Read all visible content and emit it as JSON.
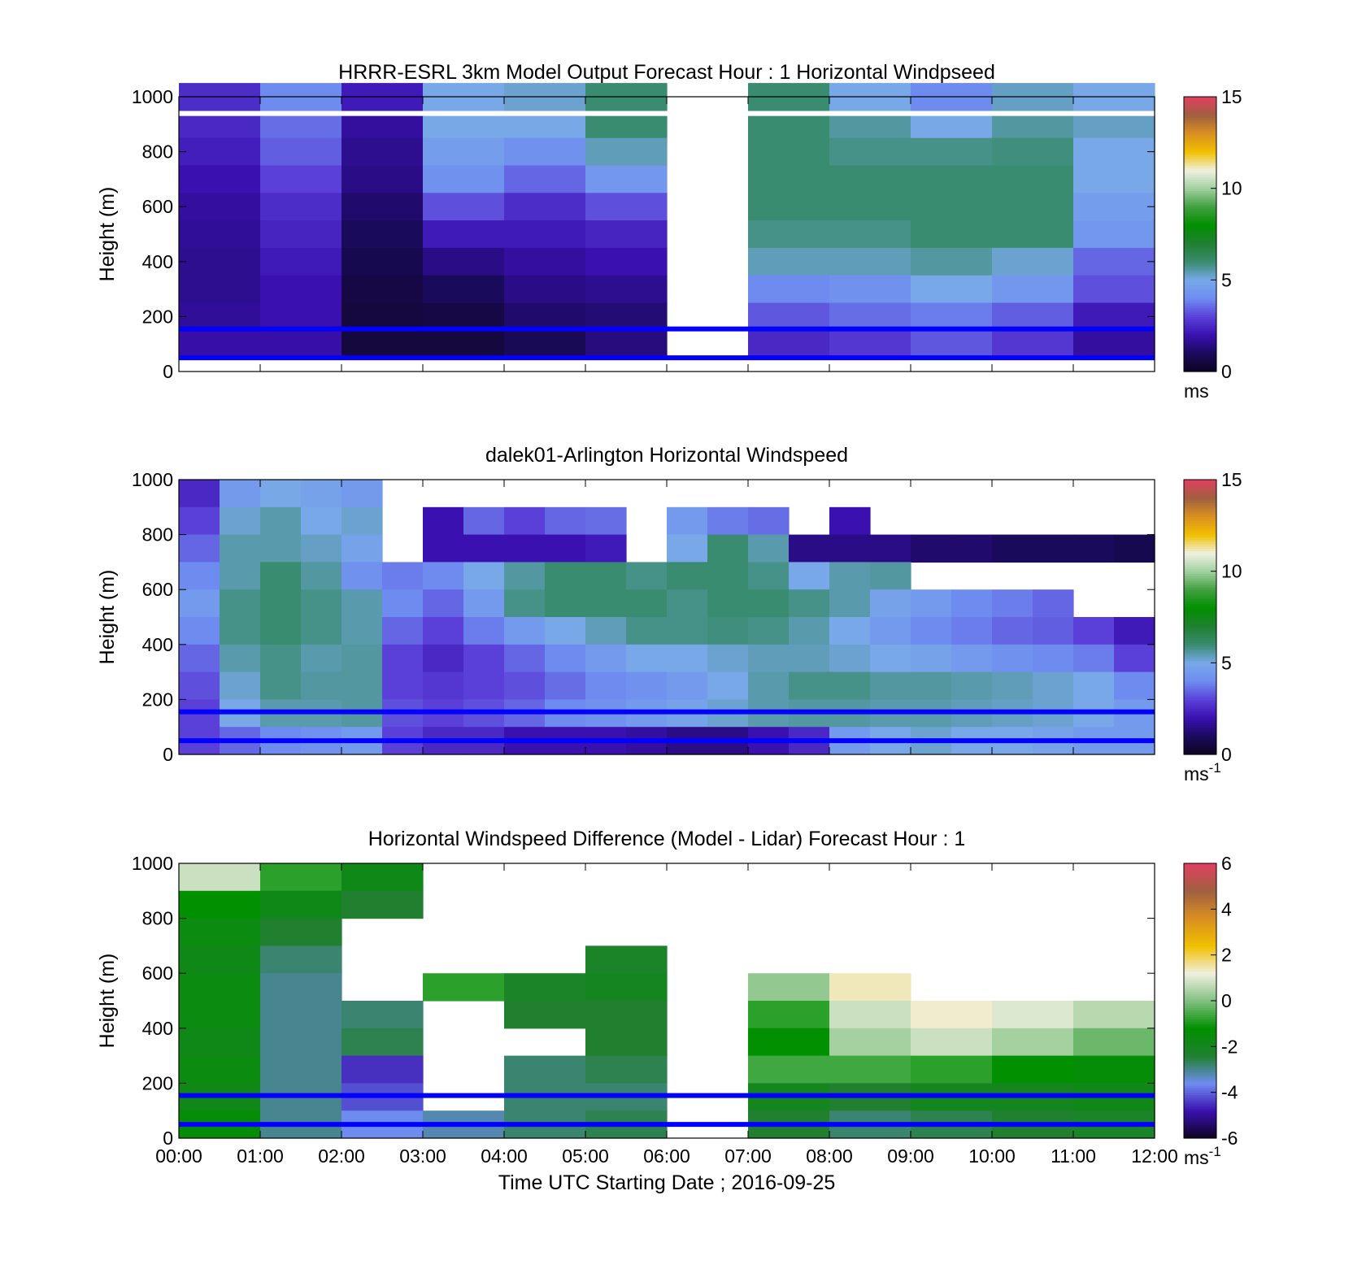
{
  "figure": {
    "xlabel": "Time UTC  Starting Date ; 2016-09-25",
    "x_ticks": [
      "00:00",
      "01:00",
      "02:00",
      "03:00",
      "04:00",
      "05:00",
      "06:00",
      "07:00",
      "08:00",
      "09:00",
      "10:00",
      "11:00",
      "12:00"
    ]
  },
  "colors": {
    "overlay_lines": "#0000ff",
    "speed_scale": [
      "#0d0520",
      "#1a0a5c",
      "#3a10b0",
      "#5a40d8",
      "#6e8cf0",
      "#78a8e8",
      "#3a8c70",
      "#208030",
      "#009000",
      "#40a040",
      "#a0d0a0",
      "#f0f0e0",
      "#f0c000",
      "#d89020",
      "#a06040",
      "#e04060"
    ],
    "diff_scale": [
      "#0d0520",
      "#3a10b0",
      "#6e8cf0",
      "#208030",
      "#009000",
      "#80c080",
      "#f0f0e0",
      "#f0c000",
      "#d89020",
      "#a06040",
      "#e04060"
    ]
  },
  "chart_data": [
    {
      "type": "heatmap",
      "title": "HRRR-ESRL 3km Model Output   Forecast Hour : 1 Horizontal Windpseed",
      "ylabel": "Height (m)",
      "xlim": [
        "00:00",
        "12:00"
      ],
      "ylim": [
        0,
        1000
      ],
      "y_ticks": [
        "0",
        "200",
        "400",
        "600",
        "800",
        "1000"
      ],
      "colorbar": {
        "ticks": [
          "0",
          "5",
          "10",
          "15"
        ],
        "range": [
          0,
          15
        ],
        "unit": "ms"
      },
      "overlay_lines_height_m": [
        50,
        155
      ],
      "missing_columns": [
        "06:00-07:00"
      ],
      "heights_m": [
        1000,
        880,
        800,
        700,
        600,
        500,
        400,
        300,
        200,
        100
      ],
      "hours": [
        "00:00",
        "01:00",
        "02:00",
        "03:00",
        "04:00",
        "05:00",
        "06:00",
        "07:00",
        "08:00",
        "09:00",
        "10:00",
        "11:00"
      ],
      "values": [
        [
          2.6,
          4.0,
          2.2,
          5.0,
          5.2,
          6.0,
          null,
          6.0,
          5.0,
          4.0,
          5.3,
          5.0
        ],
        [
          2.5,
          3.6,
          1.8,
          5.0,
          5.0,
          6.0,
          null,
          6.0,
          5.6,
          5.0,
          5.6,
          5.3
        ],
        [
          2.3,
          3.4,
          1.6,
          4.6,
          4.2,
          5.4,
          null,
          6.0,
          5.8,
          5.8,
          5.9,
          5.0
        ],
        [
          2.0,
          3.0,
          1.5,
          4.2,
          3.5,
          4.4,
          null,
          6.0,
          6.0,
          6.0,
          6.0,
          5.0
        ],
        [
          1.8,
          2.6,
          1.2,
          3.2,
          2.6,
          3.2,
          null,
          6.0,
          6.0,
          6.0,
          6.0,
          4.6
        ],
        [
          1.7,
          2.4,
          1.0,
          2.2,
          2.2,
          2.4,
          null,
          5.8,
          5.8,
          6.0,
          6.0,
          4.4
        ],
        [
          1.6,
          2.2,
          0.8,
          1.5,
          1.8,
          2.0,
          null,
          5.4,
          5.4,
          5.6,
          5.2,
          3.5
        ],
        [
          1.6,
          2.0,
          0.6,
          1.0,
          1.5,
          1.6,
          null,
          4.0,
          4.2,
          5.0,
          4.4,
          3.2
        ],
        [
          1.7,
          2.0,
          0.5,
          0.6,
          1.2,
          1.3,
          null,
          3.3,
          3.6,
          3.8,
          3.4,
          2.2
        ],
        [
          1.9,
          1.9,
          0.5,
          0.5,
          0.9,
          1.4,
          null,
          2.5,
          2.8,
          3.3,
          2.8,
          1.8
        ]
      ]
    },
    {
      "type": "heatmap",
      "title": "dalek01-Arlington  Horizontal Windspeed",
      "ylabel": "Height (m)",
      "xlim": [
        "00:00",
        "12:00"
      ],
      "ylim": [
        0,
        1000
      ],
      "y_ticks": [
        "0",
        "200",
        "400",
        "600",
        "800",
        "1000"
      ],
      "colorbar": {
        "ticks": [
          "0",
          "5",
          "10",
          "15"
        ],
        "range": [
          0,
          15
        ],
        "unit": "ms",
        "unit_exponent": "-1"
      },
      "overlay_lines_height_m": [
        50,
        155
      ],
      "heights_m": [
        950,
        850,
        750,
        650,
        550,
        450,
        350,
        250,
        150,
        50
      ],
      "hours": [
        "00:00",
        "00:30",
        "01:00",
        "01:30",
        "02:00",
        "02:30",
        "03:00",
        "03:30",
        "04:00",
        "04:30",
        "05:00",
        "05:30",
        "06:00",
        "06:30",
        "07:00",
        "07:30",
        "08:00",
        "08:30",
        "09:00",
        "09:30",
        "10:00",
        "10:30",
        "11:00",
        "11:30"
      ],
      "values": [
        [
          2.5,
          4.5,
          5.0,
          4.8,
          4.5,
          null,
          null,
          null,
          null,
          null,
          null,
          null,
          null,
          null,
          null,
          null,
          null,
          null,
          null,
          null,
          null,
          null,
          null,
          null
        ],
        [
          3.0,
          5.2,
          5.5,
          5.0,
          5.2,
          null,
          2.0,
          3.5,
          3.0,
          3.5,
          3.6,
          null,
          4.5,
          3.8,
          3.6,
          null,
          2.0,
          null,
          null,
          null,
          null,
          null,
          null,
          null
        ],
        [
          3.5,
          5.5,
          5.5,
          5.3,
          4.8,
          null,
          2.0,
          2.0,
          2.0,
          2.0,
          2.2,
          null,
          5.0,
          6.0,
          5.5,
          1.5,
          1.5,
          1.5,
          1.2,
          1.2,
          1.0,
          1.0,
          1.0,
          0.8
        ],
        [
          4.0,
          5.5,
          6.0,
          5.6,
          4.2,
          3.8,
          4.0,
          5.0,
          5.6,
          6.0,
          6.0,
          5.8,
          6.0,
          6.0,
          5.8,
          5.0,
          5.5,
          5.6,
          null,
          null,
          null,
          null,
          null,
          null
        ],
        [
          4.5,
          5.8,
          6.0,
          5.8,
          5.5,
          4.0,
          3.5,
          4.5,
          5.8,
          6.0,
          6.0,
          6.0,
          5.8,
          6.0,
          6.0,
          5.8,
          5.5,
          4.8,
          4.5,
          4.0,
          3.8,
          3.5,
          null,
          null
        ],
        [
          4.0,
          5.8,
          6.0,
          5.8,
          5.5,
          3.5,
          3.0,
          3.8,
          4.5,
          5.0,
          5.4,
          5.8,
          5.8,
          5.9,
          5.8,
          5.5,
          5.0,
          4.5,
          4.0,
          3.8,
          3.5,
          3.4,
          3.0,
          2.2
        ],
        [
          3.5,
          5.5,
          5.8,
          5.5,
          5.6,
          3.0,
          2.5,
          3.0,
          3.5,
          4.0,
          4.5,
          5.0,
          5.0,
          5.2,
          5.4,
          5.4,
          5.2,
          5.0,
          4.8,
          4.5,
          4.2,
          4.0,
          3.8,
          3.0
        ],
        [
          3.2,
          5.2,
          5.8,
          5.6,
          5.6,
          3.0,
          2.8,
          3.0,
          3.2,
          3.6,
          4.0,
          4.2,
          4.5,
          5.0,
          5.5,
          5.8,
          5.8,
          5.6,
          5.6,
          5.5,
          5.4,
          5.2,
          5.0,
          4.0
        ],
        [
          3.0,
          5.0,
          5.5,
          5.5,
          5.6,
          3.2,
          3.0,
          3.2,
          3.5,
          4.0,
          4.2,
          4.5,
          4.8,
          5.2,
          5.5,
          5.6,
          5.6,
          5.5,
          5.5,
          5.4,
          5.3,
          5.2,
          5.0,
          4.5
        ],
        [
          3.0,
          3.5,
          4.0,
          4.2,
          4.5,
          3.0,
          2.5,
          2.5,
          2.0,
          2.0,
          2.0,
          1.8,
          1.5,
          1.5,
          2.0,
          2.5,
          4.5,
          5.0,
          5.2,
          5.0,
          5.0,
          4.8,
          4.5,
          4.5
        ]
      ]
    },
    {
      "type": "heatmap",
      "title": "Horizontal Windspeed Difference (Model - Lidar) Forecast Hour : 1",
      "ylabel": "Height (m)",
      "xlim": [
        "00:00",
        "12:00"
      ],
      "ylim": [
        0,
        1000
      ],
      "y_ticks": [
        "0",
        "200",
        "400",
        "600",
        "800",
        "1000"
      ],
      "colorbar": {
        "ticks": [
          "-6",
          "-4",
          "-2",
          "0",
          "2",
          "4",
          "6"
        ],
        "range": [
          -6,
          6
        ],
        "unit": "ms",
        "unit_exponent": "-1"
      },
      "overlay_lines_height_m": [
        50,
        155
      ],
      "heights_m": [
        950,
        850,
        750,
        650,
        550,
        450,
        350,
        250,
        150,
        50
      ],
      "hours": [
        "00:00",
        "01:00",
        "02:00",
        "03:00",
        "04:00",
        "05:00",
        "06:00",
        "07:00",
        "08:00",
        "09:00",
        "10:00",
        "11:00"
      ],
      "values": [
        [
          0.8,
          -0.8,
          -1.8,
          null,
          null,
          null,
          null,
          null,
          null,
          null,
          null,
          null
        ],
        [
          -1.2,
          -1.8,
          -2.4,
          null,
          null,
          null,
          null,
          null,
          null,
          null,
          null,
          null
        ],
        [
          -1.6,
          -2.4,
          null,
          null,
          null,
          null,
          null,
          null,
          null,
          null,
          null,
          null
        ],
        [
          -1.8,
          -2.8,
          null,
          null,
          null,
          -2.2,
          null,
          null,
          null,
          null,
          null,
          null
        ],
        [
          -1.6,
          -3.0,
          null,
          -0.8,
          -2.2,
          -2.0,
          null,
          0.2,
          1.4,
          null,
          null,
          null
        ],
        [
          -1.6,
          -3.0,
          -2.8,
          null,
          -2.4,
          -2.4,
          null,
          -0.8,
          0.8,
          1.3,
          1.0,
          0.6
        ],
        [
          -1.8,
          -3.0,
          -2.6,
          null,
          null,
          -2.4,
          null,
          -1.2,
          0.4,
          0.8,
          0.4,
          -0.2
        ],
        [
          -1.6,
          -3.0,
          -4.5,
          null,
          -2.8,
          -2.6,
          null,
          -0.6,
          -0.6,
          -0.8,
          -1.2,
          -1.4
        ],
        [
          -1.8,
          -3.0,
          -4.2,
          null,
          -2.8,
          -2.8,
          null,
          -2.0,
          -2.4,
          -2.0,
          -2.0,
          -1.8
        ],
        [
          -1.4,
          -3.0,
          -3.6,
          -3.2,
          -2.8,
          -2.6,
          null,
          -2.4,
          -2.8,
          -2.6,
          -2.4,
          -2.2
        ]
      ]
    }
  ]
}
